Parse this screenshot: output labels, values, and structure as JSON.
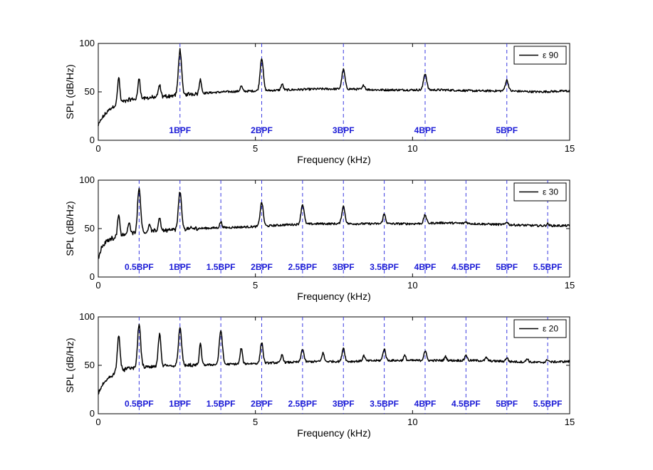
{
  "chart_data": [
    {
      "type": "line",
      "legend": "ε 90",
      "legend_position": "top-right",
      "xlabel": "Frequency (kHz)",
      "ylabel": "SPL (dB/Hz)",
      "xlim": [
        0,
        15
      ],
      "ylim": [
        0,
        100
      ],
      "xticks": [
        0,
        5,
        10,
        15
      ],
      "yticks": [
        0,
        50,
        100
      ],
      "grid": false,
      "line_color": "#000000",
      "marker_color": "#3a3ae0",
      "baseline": [
        [
          0,
          15
        ],
        [
          0.1,
          22
        ],
        [
          0.3,
          30
        ],
        [
          0.6,
          38
        ],
        [
          1,
          42
        ],
        [
          2,
          45
        ],
        [
          3,
          48
        ],
        [
          4,
          50
        ],
        [
          5,
          51
        ],
        [
          6,
          52
        ],
        [
          7,
          53
        ],
        [
          8,
          53
        ],
        [
          9,
          52
        ],
        [
          10,
          52
        ],
        [
          11,
          52
        ],
        [
          12,
          51
        ],
        [
          13,
          51
        ],
        [
          14,
          50
        ],
        [
          15,
          51
        ]
      ],
      "peaks": [
        [
          0.65,
          65,
          0.05
        ],
        [
          1.3,
          65,
          0.05
        ],
        [
          1.95,
          57,
          0.05
        ],
        [
          2.6,
          94,
          0.07
        ],
        [
          3.25,
          63,
          0.05
        ],
        [
          4.55,
          56,
          0.05
        ],
        [
          5.2,
          85,
          0.07
        ],
        [
          5.85,
          58,
          0.05
        ],
        [
          7.8,
          73,
          0.07
        ],
        [
          8.45,
          57,
          0.05
        ],
        [
          10.4,
          69,
          0.07
        ],
        [
          13.0,
          62,
          0.07
        ]
      ],
      "bpf_markers": [
        {
          "x": 2.6,
          "label": "1BPF"
        },
        {
          "x": 5.2,
          "label": "2BPF"
        },
        {
          "x": 7.8,
          "label": "3BPF"
        },
        {
          "x": 10.4,
          "label": "4BPF"
        },
        {
          "x": 13.0,
          "label": "5BPF"
        }
      ]
    },
    {
      "type": "line",
      "legend": "ε 30",
      "legend_position": "top-right",
      "xlabel": "Frequency (kHz)",
      "ylabel": "SPL (dB/Hz)",
      "xlim": [
        0,
        15
      ],
      "ylim": [
        0,
        100
      ],
      "xticks": [
        0,
        5,
        10,
        15
      ],
      "yticks": [
        0,
        50,
        100
      ],
      "grid": false,
      "line_color": "#000000",
      "marker_color": "#3a3ae0",
      "baseline": [
        [
          0,
          18
        ],
        [
          0.1,
          30
        ],
        [
          0.3,
          38
        ],
        [
          0.6,
          42
        ],
        [
          1,
          45
        ],
        [
          2,
          48
        ],
        [
          3,
          50
        ],
        [
          4,
          51
        ],
        [
          5,
          52
        ],
        [
          6,
          54
        ],
        [
          7,
          55
        ],
        [
          8,
          55
        ],
        [
          9,
          55
        ],
        [
          10,
          55
        ],
        [
          11,
          56
        ],
        [
          12,
          55
        ],
        [
          13,
          54
        ],
        [
          14,
          53
        ],
        [
          15,
          53
        ]
      ],
      "peaks": [
        [
          0.65,
          65,
          0.05
        ],
        [
          0.98,
          56,
          0.05
        ],
        [
          1.3,
          92,
          0.07
        ],
        [
          1.63,
          55,
          0.04
        ],
        [
          1.95,
          62,
          0.05
        ],
        [
          2.6,
          88,
          0.07
        ],
        [
          3.9,
          57,
          0.05
        ],
        [
          5.2,
          77,
          0.07
        ],
        [
          6.5,
          75,
          0.07
        ],
        [
          7.8,
          73,
          0.07
        ],
        [
          9.1,
          65,
          0.06
        ],
        [
          10.4,
          64,
          0.06
        ],
        [
          11.7,
          57,
          0.05
        ],
        [
          13.0,
          57,
          0.05
        ],
        [
          14.3,
          55,
          0.05
        ]
      ],
      "bpf_markers": [
        {
          "x": 1.3,
          "label": "0.5BPF"
        },
        {
          "x": 2.6,
          "label": "1BPF"
        },
        {
          "x": 3.9,
          "label": "1.5BPF"
        },
        {
          "x": 5.2,
          "label": "2BPF"
        },
        {
          "x": 6.5,
          "label": "2.5BPF"
        },
        {
          "x": 7.8,
          "label": "3BPF"
        },
        {
          "x": 9.1,
          "label": "3.5BPF"
        },
        {
          "x": 10.4,
          "label": "4BPF"
        },
        {
          "x": 11.7,
          "label": "4.5BPF"
        },
        {
          "x": 13.0,
          "label": "5BPF"
        },
        {
          "x": 14.3,
          "label": "5.5BPF"
        }
      ]
    },
    {
      "type": "line",
      "legend": "ε 20",
      "legend_position": "top-right",
      "xlabel": "Frequency (kHz)",
      "ylabel": "SPL (dB/Hz)",
      "xlim": [
        0,
        15
      ],
      "ylim": [
        0,
        100
      ],
      "xticks": [
        0,
        5,
        10,
        15
      ],
      "yticks": [
        0,
        50,
        100
      ],
      "grid": false,
      "line_color": "#000000",
      "marker_color": "#3a3ae0",
      "baseline": [
        [
          0,
          20
        ],
        [
          0.1,
          28
        ],
        [
          0.3,
          36
        ],
        [
          0.6,
          44
        ],
        [
          1,
          47
        ],
        [
          2,
          49
        ],
        [
          3,
          50
        ],
        [
          4,
          51
        ],
        [
          5,
          52
        ],
        [
          6,
          53
        ],
        [
          7,
          54
        ],
        [
          8,
          54
        ],
        [
          9,
          55
        ],
        [
          10,
          55
        ],
        [
          11,
          55
        ],
        [
          12,
          55
        ],
        [
          13,
          54
        ],
        [
          14,
          53
        ],
        [
          15,
          54
        ]
      ],
      "peaks": [
        [
          0.65,
          82,
          0.06
        ],
        [
          1.3,
          92,
          0.07
        ],
        [
          1.95,
          82,
          0.06
        ],
        [
          2.6,
          90,
          0.07
        ],
        [
          3.25,
          72,
          0.05
        ],
        [
          3.9,
          86,
          0.07
        ],
        [
          4.55,
          68,
          0.05
        ],
        [
          5.2,
          74,
          0.06
        ],
        [
          5.85,
          61,
          0.05
        ],
        [
          6.5,
          67,
          0.06
        ],
        [
          7.15,
          63,
          0.05
        ],
        [
          7.8,
          68,
          0.06
        ],
        [
          8.45,
          60,
          0.05
        ],
        [
          9.1,
          67,
          0.06
        ],
        [
          9.75,
          60,
          0.05
        ],
        [
          10.4,
          65,
          0.06
        ],
        [
          11.05,
          59,
          0.05
        ],
        [
          11.7,
          61,
          0.05
        ],
        [
          12.35,
          58,
          0.05
        ],
        [
          13.0,
          58,
          0.05
        ],
        [
          13.65,
          57,
          0.05
        ],
        [
          14.3,
          56,
          0.05
        ]
      ],
      "bpf_markers": [
        {
          "x": 1.3,
          "label": "0.5BPF"
        },
        {
          "x": 2.6,
          "label": "1BPF"
        },
        {
          "x": 3.9,
          "label": "1.5BPF"
        },
        {
          "x": 5.2,
          "label": "2BPF"
        },
        {
          "x": 6.5,
          "label": "2.5BPF"
        },
        {
          "x": 7.8,
          "label": "3BPF"
        },
        {
          "x": 9.1,
          "label": "3.5BPF"
        },
        {
          "x": 10.4,
          "label": "4BPF"
        },
        {
          "x": 11.7,
          "label": "4.5BPF"
        },
        {
          "x": 13.0,
          "label": "5BPF"
        },
        {
          "x": 14.3,
          "label": "5.5BPF"
        }
      ]
    }
  ]
}
